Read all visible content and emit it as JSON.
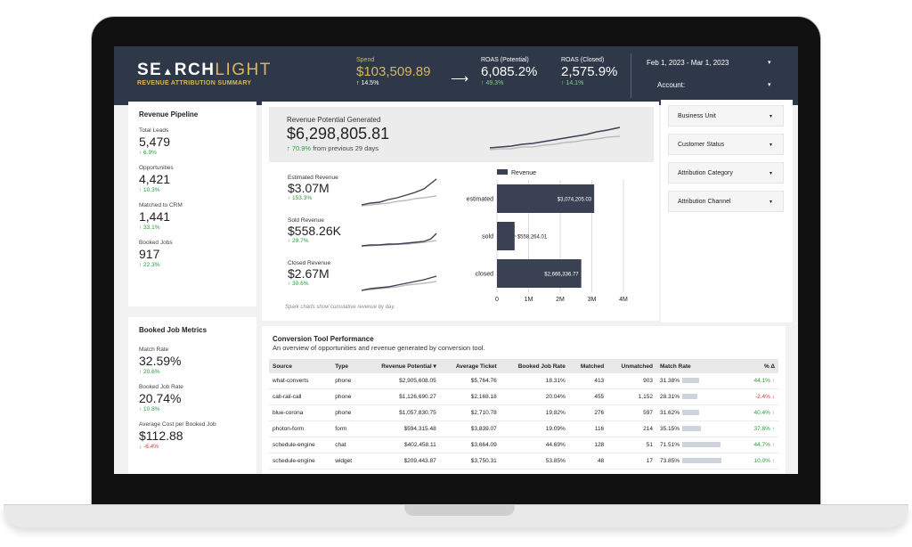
{
  "header": {
    "logo_left": "SE",
    "logo_mid": "RCH",
    "logo_light": "LIGHT",
    "logo_subtitle": "REVENUE ATTRIBUTION SUMMARY",
    "spend": {
      "label": "Spend",
      "value": "$103,509.89",
      "change": "↑ 14.5%"
    },
    "roas_potential": {
      "label": "ROAS (Potential)",
      "value": "6,085.2%",
      "change": "↑ 49.3%"
    },
    "roas_closed": {
      "label": "ROAS (Closed)",
      "value": "2,575.9%",
      "change": "↑ 14.1%"
    },
    "date_range": "Feb 1, 2023 - Mar 1, 2023",
    "account_label": "Account:"
  },
  "pipeline": {
    "title": "Revenue Pipeline",
    "metrics": [
      {
        "label": "Total Leads",
        "value": "5,479",
        "change": "↑ 6.9%"
      },
      {
        "label": "Opportunities",
        "value": "4,421",
        "change": "↑ 10.3%"
      },
      {
        "label": "Matched to CRM",
        "value": "1,441",
        "change": "↑ 33.1%"
      },
      {
        "label": "Booked Jobs",
        "value": "917",
        "change": "↑ 22.3%"
      }
    ]
  },
  "booked_metrics": {
    "title": "Booked Job Metrics",
    "metrics": [
      {
        "label": "Match Rate",
        "value": "32.59%",
        "change": "↑ 20.6%"
      },
      {
        "label": "Booked Job Rate",
        "value": "20.74%",
        "change": "↑ 10.8%"
      },
      {
        "label": "Average Cost per Booked Job",
        "value": "$112.88",
        "change": "↓ -6.4%"
      }
    ]
  },
  "revenue_potential": {
    "label": "Revenue Potential Generated",
    "value": "$6,298,805.81",
    "change_pct": "↑ 70.9%",
    "change_text": "from previous 29 days"
  },
  "sub_metrics": [
    {
      "label": "Estimated Revenue",
      "value": "$3.07M",
      "change": "↑ 153.3%"
    },
    {
      "label": "Sold Revenue",
      "value": "$558.26K",
      "change": "↑ 29.7%"
    },
    {
      "label": "Closed Revenue",
      "value": "$2.67M",
      "change": "↑ 30.6%"
    }
  ],
  "spark_note": "Spark charts show cumulative revenue by day.",
  "chart_data": {
    "type": "bar",
    "orientation": "horizontal",
    "categories": [
      "estimated",
      "sold",
      "closed"
    ],
    "series": [
      {
        "name": "Revenue",
        "values": [
          3074205.03,
          558264.01,
          2666336.77
        ]
      }
    ],
    "data_labels": [
      "$3,074,205.03",
      "$558,264.01",
      "$2,666,336.77"
    ],
    "xlim": [
      0,
      4000000
    ],
    "x_ticks": [
      "0",
      "1M",
      "2M",
      "3M",
      "4M"
    ],
    "legend": "top",
    "grid": true,
    "bar_color": "#3a4152"
  },
  "filters": [
    "Business Unit",
    "Customer Status",
    "Attribution Category",
    "Attribution Channel"
  ],
  "table": {
    "title": "Conversion Tool Performance",
    "subtitle": "An overview of opportunities and revenue generated by conversion tool.",
    "columns": [
      "Source",
      "Type",
      "Revenue Potential ▾",
      "Average Ticket",
      "Booked Job Rate",
      "Matched",
      "Unmatched",
      "Match Rate",
      "% Δ"
    ],
    "rows": [
      {
        "source": "what-converts",
        "type": "phone",
        "revenue": "$2,905,608.05",
        "ticket": "$5,764.76",
        "bjr": "18.31%",
        "matched": "413",
        "unmatched": "903",
        "match_rate": "31.38%",
        "match_frac": 0.3138,
        "delta": "44.1% ↑",
        "dir": "up"
      },
      {
        "source": "call-rail-call",
        "type": "phone",
        "revenue": "$1,126,690.27",
        "ticket": "$2,168.18",
        "bjr": "20.04%",
        "matched": "455",
        "unmatched": "1,152",
        "match_rate": "28.31%",
        "match_frac": 0.2831,
        "delta": "-2.4% ↓",
        "dir": "dn"
      },
      {
        "source": "blue-corona",
        "type": "phone",
        "revenue": "$1,057,830.75",
        "ticket": "$2,710.78",
        "bjr": "19.82%",
        "matched": "276",
        "unmatched": "597",
        "match_rate": "31.62%",
        "match_frac": 0.3162,
        "delta": "40.4% ↑",
        "dir": "up"
      },
      {
        "source": "photon-form",
        "type": "form",
        "revenue": "$594,315.48",
        "ticket": "$3,839.07",
        "bjr": "19.09%",
        "matched": "116",
        "unmatched": "214",
        "match_rate": "35.15%",
        "match_frac": 0.3515,
        "delta": "37.8% ↑",
        "dir": "up"
      },
      {
        "source": "schedule-engine",
        "type": "chat",
        "revenue": "$402,458.11",
        "ticket": "$3,664.09",
        "bjr": "44.69%",
        "matched": "128",
        "unmatched": "51",
        "match_rate": "71.51%",
        "match_frac": 0.7151,
        "delta": "44.7% ↑",
        "dir": "up"
      },
      {
        "source": "schedule-engine",
        "type": "widget",
        "revenue": "$209,443.87",
        "ticket": "$3,750.31",
        "bjr": "53.85%",
        "matched": "48",
        "unmatched": "17",
        "match_rate": "73.85%",
        "match_frac": 0.7385,
        "delta": "10.0% ↑",
        "dir": "up"
      }
    ]
  }
}
